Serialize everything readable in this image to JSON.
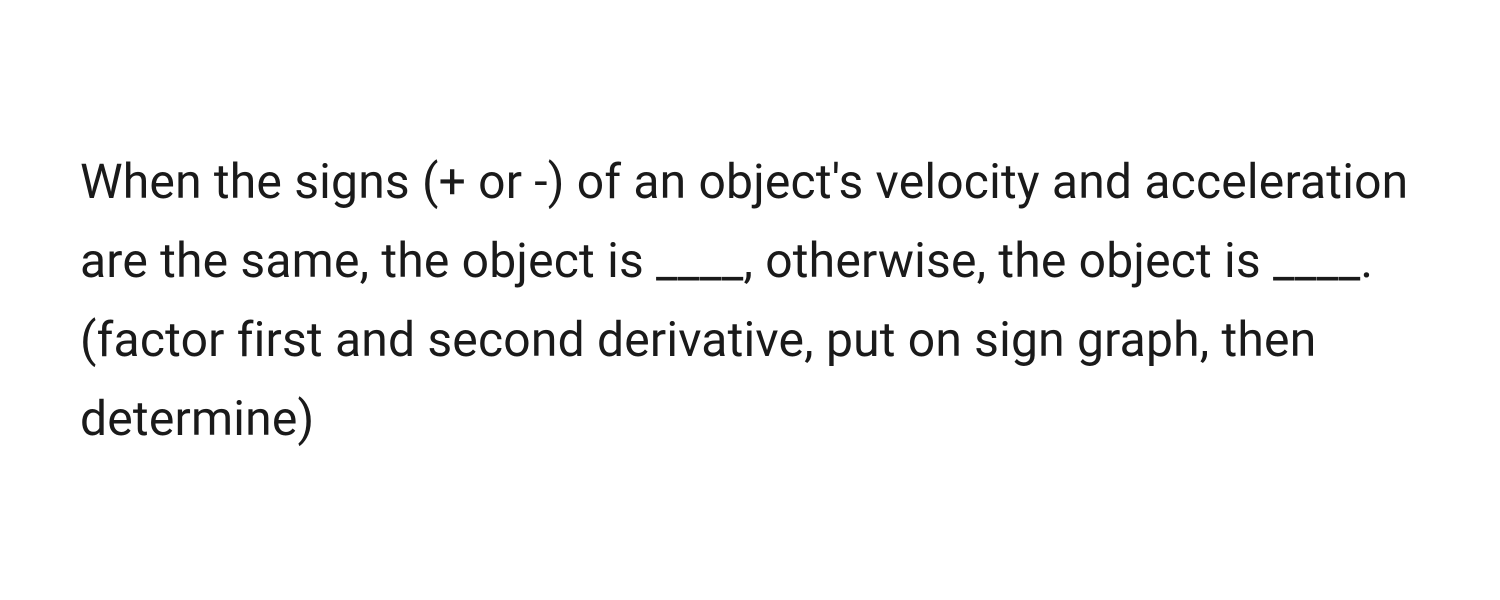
{
  "question": {
    "text": "When the signs (+ or -) of an object's velocity and acceleration are the same, the object is ____, otherwise, the object is ____. (factor first and second derivative, put on sign graph, then determine)",
    "text_color": "#1a1a1a",
    "background_color": "#ffffff",
    "font_size": 48,
    "line_height": 1.65
  }
}
